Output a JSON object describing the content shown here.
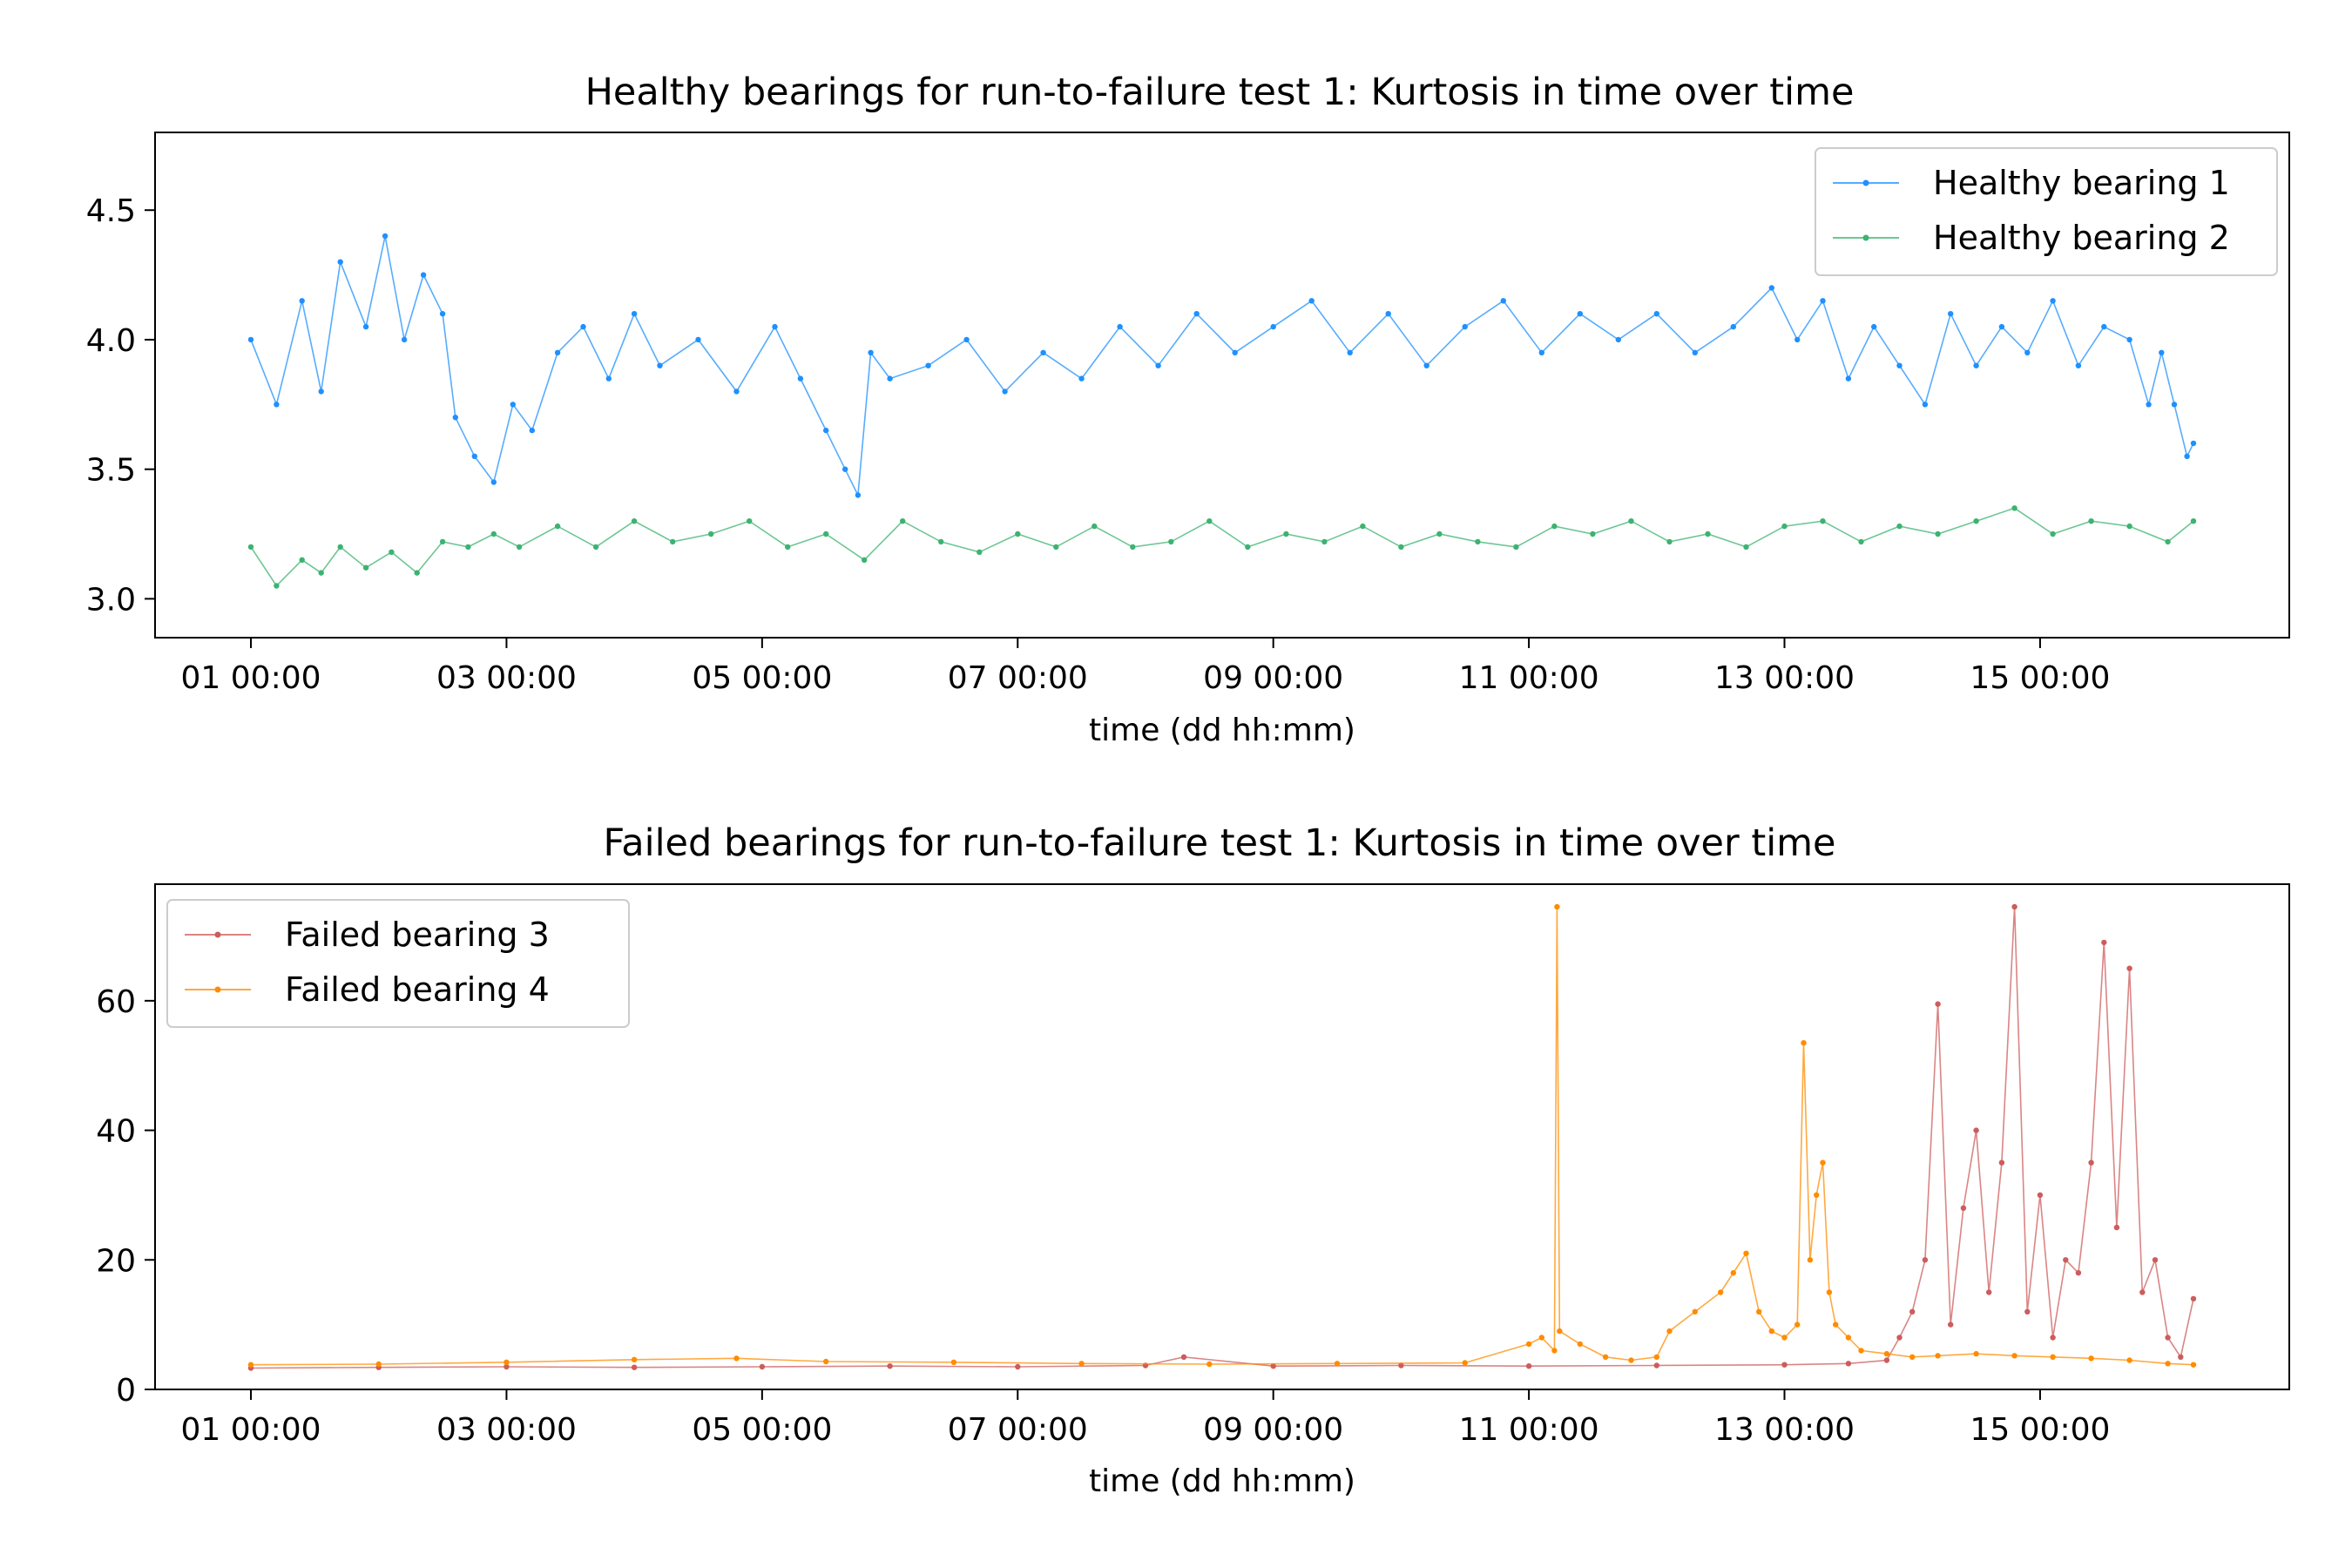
{
  "chart_data": [
    {
      "type": "line",
      "title": "Healthy bearings for run-to-failure test 1: Kurtosis in time over time",
      "xlabel": "time (dd hh:mm)",
      "ylabel": "",
      "x_unit": "days since 01 00:00",
      "xlim": [
        -0.75,
        15.95
      ],
      "ylim": [
        2.85,
        4.8
      ],
      "xticks": [
        0,
        2,
        4,
        6,
        8,
        10,
        12,
        14
      ],
      "xtick_labels": [
        "01 00:00",
        "03 00:00",
        "05 00:00",
        "07 00:00",
        "09 00:00",
        "11 00:00",
        "13 00:00",
        "15 00:00"
      ],
      "yticks": [
        3.0,
        3.5,
        4.0,
        4.5
      ],
      "ytick_labels": [
        "3.0",
        "3.5",
        "4.0",
        "4.5"
      ],
      "legend_position": "top-right",
      "series": [
        {
          "name": "Healthy bearing 1",
          "color": "#1e90ff",
          "x": [
            0,
            0.2,
            0.4,
            0.55,
            0.7,
            0.9,
            1.05,
            1.2,
            1.35,
            1.5,
            1.6,
            1.75,
            1.9,
            2.05,
            2.2,
            2.4,
            2.6,
            2.8,
            3.0,
            3.2,
            3.5,
            3.8,
            4.1,
            4.3,
            4.5,
            4.65,
            4.75,
            4.85,
            5.0,
            5.3,
            5.6,
            5.9,
            6.2,
            6.5,
            6.8,
            7.1,
            7.4,
            7.7,
            8.0,
            8.3,
            8.6,
            8.9,
            9.2,
            9.5,
            9.8,
            10.1,
            10.4,
            10.7,
            11.0,
            11.3,
            11.6,
            11.9,
            12.1,
            12.3,
            12.5,
            12.7,
            12.9,
            13.1,
            13.3,
            13.5,
            13.7,
            13.9,
            14.1,
            14.3,
            14.5,
            14.7,
            14.85,
            14.95,
            15.05,
            15.15,
            15.2
          ],
          "y": [
            4.0,
            3.75,
            4.15,
            3.8,
            4.3,
            4.05,
            4.4,
            4.0,
            4.25,
            4.1,
            3.7,
            3.55,
            3.45,
            3.75,
            3.65,
            3.95,
            4.05,
            3.85,
            4.1,
            3.9,
            4.0,
            3.8,
            4.05,
            3.85,
            3.65,
            3.5,
            3.4,
            3.95,
            3.85,
            3.9,
            4.0,
            3.8,
            3.95,
            3.85,
            4.05,
            3.9,
            4.1,
            3.95,
            4.05,
            4.15,
            3.95,
            4.1,
            3.9,
            4.05,
            4.15,
            3.95,
            4.1,
            4.0,
            4.1,
            3.95,
            4.05,
            4.2,
            4.0,
            4.15,
            3.85,
            4.05,
            3.9,
            3.75,
            4.1,
            3.9,
            4.05,
            3.95,
            4.15,
            3.9,
            4.05,
            4.0,
            3.75,
            3.95,
            3.75,
            3.55,
            3.6
          ]
        },
        {
          "name": "Healthy bearing 2",
          "color": "#3cb371",
          "x": [
            0,
            0.2,
            0.4,
            0.55,
            0.7,
            0.9,
            1.1,
            1.3,
            1.5,
            1.7,
            1.9,
            2.1,
            2.4,
            2.7,
            3.0,
            3.3,
            3.6,
            3.9,
            4.2,
            4.5,
            4.8,
            5.1,
            5.4,
            5.7,
            6.0,
            6.3,
            6.6,
            6.9,
            7.2,
            7.5,
            7.8,
            8.1,
            8.4,
            8.7,
            9.0,
            9.3,
            9.6,
            9.9,
            10.2,
            10.5,
            10.8,
            11.1,
            11.4,
            11.7,
            12.0,
            12.3,
            12.6,
            12.9,
            13.2,
            13.5,
            13.8,
            14.1,
            14.4,
            14.7,
            15.0,
            15.2
          ],
          "y": [
            3.2,
            3.05,
            3.15,
            3.1,
            3.2,
            3.12,
            3.18,
            3.1,
            3.22,
            3.2,
            3.25,
            3.2,
            3.28,
            3.2,
            3.3,
            3.22,
            3.25,
            3.3,
            3.2,
            3.25,
            3.15,
            3.3,
            3.22,
            3.18,
            3.25,
            3.2,
            3.28,
            3.2,
            3.22,
            3.3,
            3.2,
            3.25,
            3.22,
            3.28,
            3.2,
            3.25,
            3.22,
            3.2,
            3.28,
            3.25,
            3.3,
            3.22,
            3.25,
            3.2,
            3.28,
            3.3,
            3.22,
            3.28,
            3.25,
            3.3,
            3.35,
            3.25,
            3.3,
            3.28,
            3.22,
            3.3
          ]
        }
      ]
    },
    {
      "type": "line",
      "title": "Failed bearings for run-to-failure test 1: Kurtosis in time over time",
      "xlabel": "time (dd hh:mm)",
      "ylabel": "",
      "x_unit": "days since 01 00:00",
      "xlim": [
        -0.75,
        15.95
      ],
      "ylim": [
        0,
        78
      ],
      "xticks": [
        0,
        2,
        4,
        6,
        8,
        10,
        12,
        14
      ],
      "xtick_labels": [
        "01 00:00",
        "03 00:00",
        "05 00:00",
        "07 00:00",
        "09 00:00",
        "11 00:00",
        "13 00:00",
        "15 00:00"
      ],
      "yticks": [
        0,
        20,
        40,
        60
      ],
      "ytick_labels": [
        "0",
        "20",
        "40",
        "60"
      ],
      "legend_position": "top-left",
      "series": [
        {
          "name": "Failed bearing 3",
          "color": "#cd5c5c",
          "x": [
            0,
            1.0,
            2.0,
            3.0,
            4.0,
            5.0,
            6.0,
            7.0,
            7.3,
            8.0,
            9.0,
            10.0,
            11.0,
            12.0,
            12.5,
            12.8,
            12.9,
            13.0,
            13.1,
            13.2,
            13.3,
            13.4,
            13.5,
            13.6,
            13.7,
            13.8,
            13.9,
            14.0,
            14.1,
            14.2,
            14.3,
            14.4,
            14.5,
            14.6,
            14.7,
            14.8,
            14.9,
            15.0,
            15.1,
            15.2
          ],
          "y": [
            3.3,
            3.4,
            3.5,
            3.4,
            3.5,
            3.6,
            3.5,
            3.7,
            5.0,
            3.6,
            3.7,
            3.6,
            3.7,
            3.8,
            4.0,
            4.5,
            8,
            12,
            20,
            59.5,
            10,
            28,
            40,
            15,
            35,
            74.5,
            12,
            30,
            8,
            20,
            18,
            35,
            69,
            25,
            65,
            15,
            20,
            8,
            5,
            14
          ]
        },
        {
          "name": "Failed bearing 4",
          "color": "#ff8c00",
          "x": [
            0,
            1.0,
            2.0,
            3.0,
            3.8,
            4.5,
            5.5,
            6.5,
            7.5,
            8.5,
            9.5,
            10.0,
            10.1,
            10.2,
            10.22,
            10.24,
            10.4,
            10.6,
            10.8,
            11.0,
            11.1,
            11.3,
            11.5,
            11.6,
            11.7,
            11.8,
            11.9,
            12.0,
            12.1,
            12.15,
            12.2,
            12.25,
            12.3,
            12.35,
            12.4,
            12.5,
            12.6,
            12.8,
            13.0,
            13.2,
            13.5,
            13.8,
            14.1,
            14.4,
            14.7,
            15.0,
            15.2
          ],
          "y": [
            3.8,
            3.9,
            4.2,
            4.6,
            4.8,
            4.3,
            4.2,
            4.0,
            3.9,
            4.0,
            4.1,
            7,
            8,
            6,
            74.5,
            9,
            7,
            5,
            4.5,
            5,
            9,
            12,
            15,
            18,
            21,
            12,
            9,
            8,
            10,
            53.5,
            20,
            30,
            35,
            15,
            10,
            8,
            6,
            5.5,
            5,
            5.2,
            5.5,
            5.2,
            5,
            4.8,
            4.5,
            4.0,
            3.8
          ]
        }
      ]
    }
  ]
}
